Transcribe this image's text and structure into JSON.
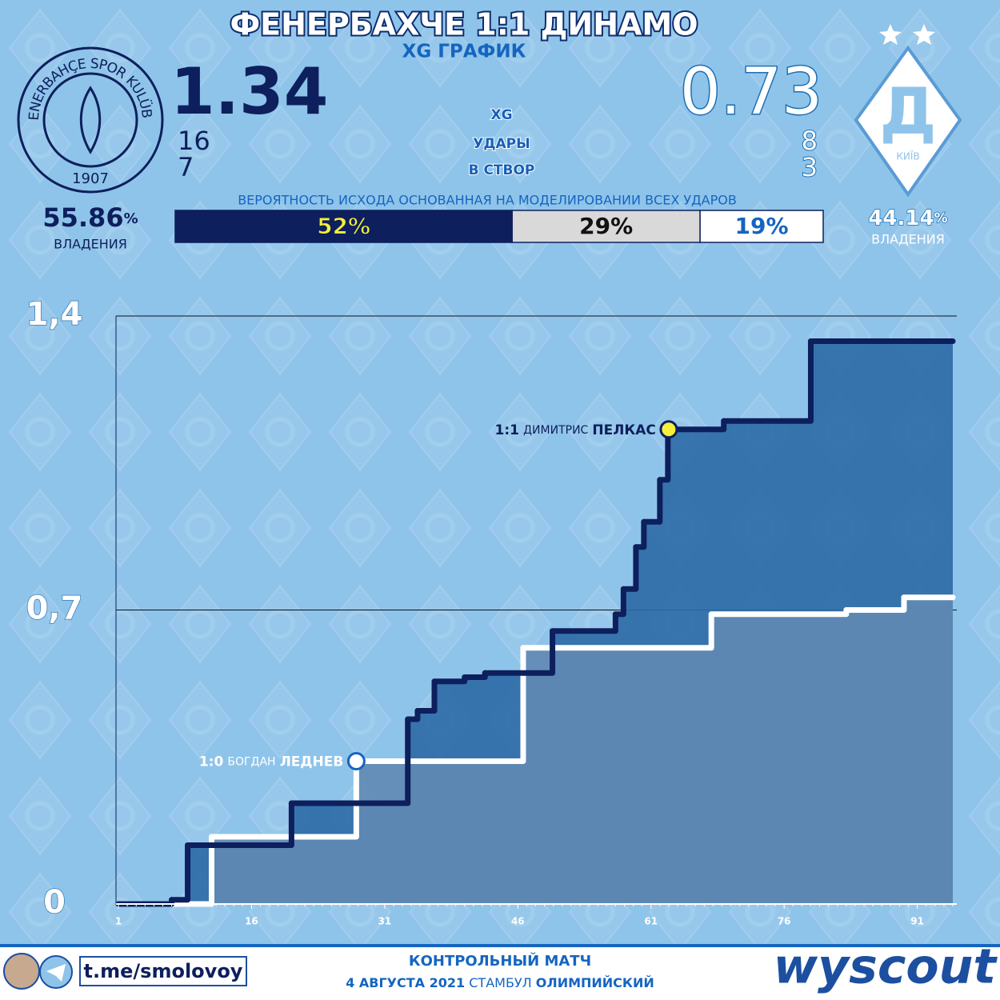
{
  "header": {
    "title": "ФЕНЕРБАХЧЕ 1:1 ДИНАМО",
    "subtitle": "XG ГРАФИК"
  },
  "home": {
    "xg": 1.34,
    "shots": 16,
    "on_target": 7,
    "possession": 55.86,
    "logo_text": "FENERBAHÇE SPOR KULÜBÜ",
    "logo_year": "1907"
  },
  "away": {
    "xg": 0.73,
    "shots": 8,
    "on_target": 3,
    "possession": 44.14,
    "logo_text": "КИЇВ",
    "logo_letter": "Д"
  },
  "stat_labels": [
    "XG",
    "УДАРЫ",
    "В СТВОР"
  ],
  "possession_unit": "%",
  "possession_label": "ВЛАДЕНИЯ",
  "outcome": {
    "title": "ВЕРОЯТНОСТЬ ИСХОДА ОСНОВАННАЯ НА МОДЕЛИРОВАНИИ ВСЕХ УДАРОВ",
    "values": [
      52,
      29,
      19
    ],
    "value_labels": [
      "52%",
      "29%",
      "19%"
    ],
    "colors": [
      "#0d1f5c",
      "#d9d9d9",
      "#ffffff"
    ],
    "label_colors": [
      "#f5f03a",
      "#111111",
      "#1565c0"
    ]
  },
  "chart_data": {
    "type": "line",
    "step": true,
    "xlim": [
      1,
      95
    ],
    "xticks": [
      1,
      16,
      31,
      46,
      61,
      76,
      91
    ],
    "ylim": [
      0,
      1.4
    ],
    "yticks": [
      0,
      {
        "value": 0.7,
        "label": "0,7"
      },
      {
        "value": 1.4,
        "label": "1,4"
      }
    ],
    "grid": true,
    "series": [
      {
        "color": "#0d1f5c",
        "area_color": "#2c6aa6",
        "x": [
          1,
          7,
          8.8,
          20.5,
          33.6,
          34.7,
          36.6,
          40,
          42.3,
          49.9,
          57,
          57.9,
          59.3,
          60.2,
          62,
          62.9,
          69.2,
          79,
          95
        ],
        "values": [
          0,
          0.01,
          0.14,
          0.24,
          0.44,
          0.46,
          0.53,
          0.54,
          0.55,
          0.65,
          0.69,
          0.75,
          0.85,
          0.91,
          1.01,
          1.13,
          1.15,
          1.34,
          1.34
        ]
      },
      {
        "color": "#ffffff",
        "area_color": "#6189b2",
        "x": [
          1,
          11.5,
          27.8,
          46.6,
          67.8,
          83,
          89.5,
          95
        ],
        "values": [
          0,
          0.16,
          0.34,
          0.61,
          0.69,
          0.7,
          0.73,
          0.73
        ]
      }
    ],
    "annotations": [
      {
        "score": "1:0",
        "first": "БОГДАН",
        "last": "ЛЕДНЕВ",
        "x": 27.8,
        "y": 0.34,
        "color": "#ffffff",
        "stroke": "#1565c0"
      },
      {
        "score": "1:1",
        "first": "ДИМИТРИС",
        "last": "ПЕЛКАС",
        "x": 63,
        "y": 1.13,
        "color": "#f5f03a",
        "stroke": "#0d1f5c"
      }
    ]
  },
  "footer": {
    "channel": "t.me/smolovoy",
    "match_type": "КОНТРОЛЬНЫЙ МАТЧ",
    "date": "4 АВГУСТА 2021",
    "city": "СТАМБУЛ",
    "venue": "ОЛИМПИЙСКИЙ",
    "brand": "wyscout"
  }
}
